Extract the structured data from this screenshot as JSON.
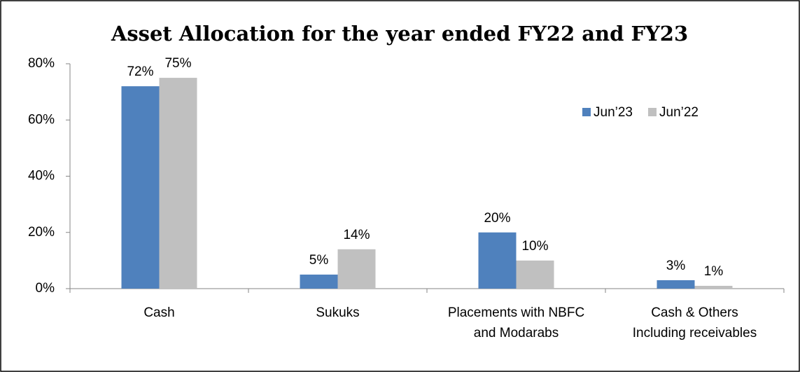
{
  "chart_data": {
    "type": "bar",
    "title": "Asset Allocation for the year ended FY22 and FY23",
    "categories": [
      "Cash",
      "Sukuks",
      "Placements with NBFC\nand Modarabs",
      "Cash & Others\nIncluding receivables"
    ],
    "series": [
      {
        "name": "Jun’23",
        "color": "#4f81bd",
        "values": [
          72,
          5,
          20,
          3
        ],
        "value_labels": [
          "72%",
          "5%",
          "20%",
          "3%"
        ]
      },
      {
        "name": "Jun’22",
        "color": "#c0c0c0",
        "values": [
          75,
          14,
          10,
          1
        ],
        "value_labels": [
          "75%",
          "14%",
          "10%",
          "1%"
        ]
      }
    ],
    "ylim": [
      0,
      80
    ],
    "yticks": [
      {
        "value": 0,
        "label": "0%"
      },
      {
        "value": 20,
        "label": "20%"
      },
      {
        "value": 40,
        "label": "40%"
      },
      {
        "value": 60,
        "label": "60%"
      },
      {
        "value": 80,
        "label": "80%"
      }
    ],
    "grid": false,
    "legend": "top-right"
  }
}
